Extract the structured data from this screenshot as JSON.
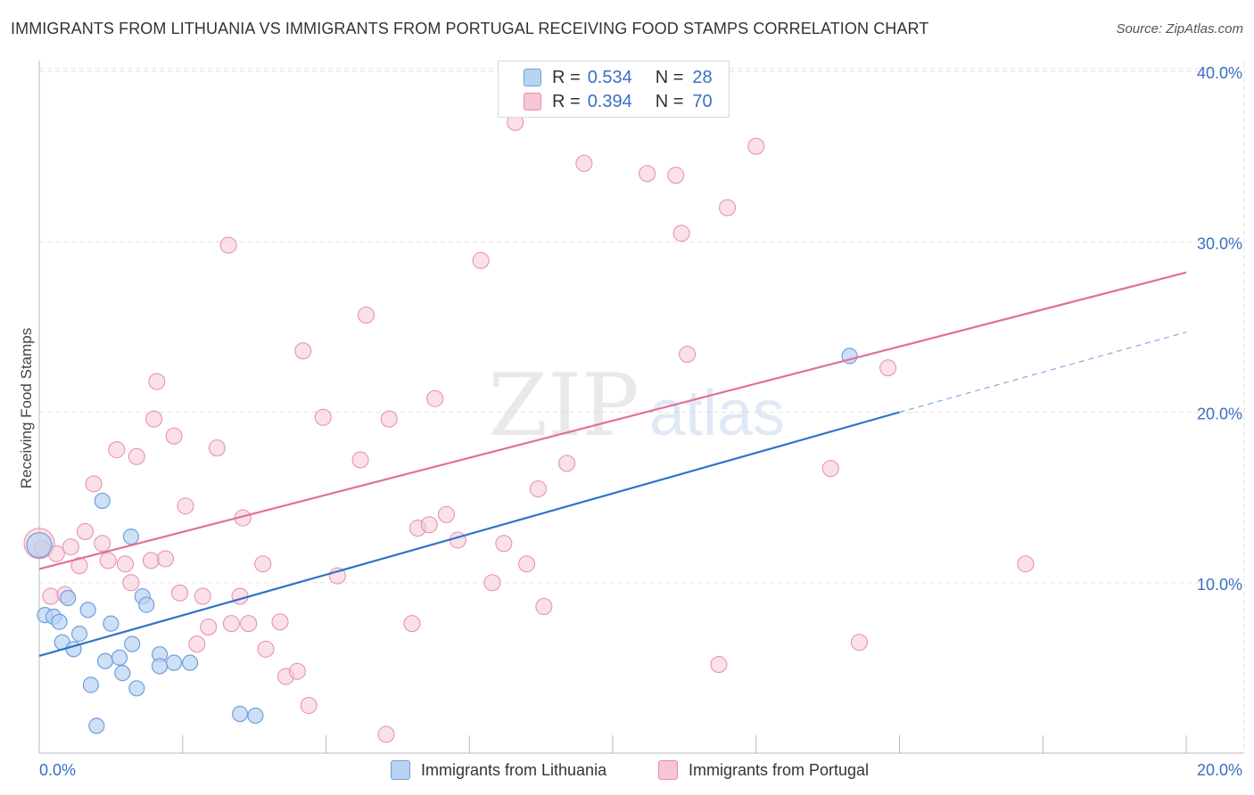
{
  "title": "IMMIGRANTS FROM LITHUANIA VS IMMIGRANTS FROM PORTUGAL RECEIVING FOOD STAMPS CORRELATION CHART",
  "source": "Source: ZipAtlas.com",
  "watermark": {
    "zip": "ZIP",
    "atlas": "atlas"
  },
  "legend": {
    "r_label": "R =",
    "n_label": "N =",
    "series1": {
      "r": "0.534",
      "n": "28"
    },
    "series2": {
      "r": "0.394",
      "n": "70"
    }
  },
  "bottom_legend": {
    "series1": "Immigrants from Lithuania",
    "series2": "Immigrants from Portugal"
  },
  "colors": {
    "blue_fill": "#b9d3f2",
    "blue_stroke": "#6d9fde",
    "blue_line": "#2f73c9",
    "pink_fill": "#f6c6d6",
    "pink_stroke": "#e88aa9",
    "pink_line": "#e0709a",
    "tick_label": "#3a6fc4"
  },
  "chart_data": {
    "type": "scatter",
    "title": "IMMIGRANTS FROM LITHUANIA VS IMMIGRANTS FROM PORTUGAL RECEIVING FOOD STAMPS CORRELATION CHART",
    "xlabel": "",
    "ylabel": "Receiving Food Stamps",
    "xlim": [
      0,
      20
    ],
    "ylim": [
      0,
      40
    ],
    "x_tick_labels": [
      "0.0%",
      "20.0%"
    ],
    "y_ticks": [
      10,
      20,
      30,
      40
    ],
    "y_tick_labels": [
      "10.0%",
      "20.0%",
      "30.0%",
      "40.0%"
    ],
    "grid": true,
    "legend_position": "top-center",
    "series": [
      {
        "name": "Immigrants from Lithuania",
        "r": 0.534,
        "n": 28,
        "trend": {
          "x0": 0,
          "y0": 5.7,
          "x1": 15,
          "y1": 20.0,
          "dashed_to_x": 20,
          "dashed_to_y": 24.7
        },
        "points": [
          [
            0.0,
            12.2
          ],
          [
            0.1,
            8.1
          ],
          [
            0.25,
            8.0
          ],
          [
            0.35,
            7.7
          ],
          [
            0.4,
            6.5
          ],
          [
            0.6,
            6.1
          ],
          [
            0.5,
            9.1
          ],
          [
            0.7,
            7.0
          ],
          [
            0.85,
            8.4
          ],
          [
            0.9,
            4.0
          ],
          [
            1.0,
            1.6
          ],
          [
            1.1,
            14.8
          ],
          [
            1.15,
            5.4
          ],
          [
            1.25,
            7.6
          ],
          [
            1.4,
            5.6
          ],
          [
            1.45,
            4.7
          ],
          [
            1.6,
            12.7
          ],
          [
            1.62,
            6.4
          ],
          [
            1.7,
            3.8
          ],
          [
            1.8,
            9.2
          ],
          [
            1.87,
            8.7
          ],
          [
            2.1,
            5.8
          ],
          [
            2.1,
            5.1
          ],
          [
            2.35,
            5.3
          ],
          [
            2.63,
            5.3
          ],
          [
            3.5,
            2.3
          ],
          [
            3.77,
            2.2
          ],
          [
            14.13,
            23.3
          ]
        ]
      },
      {
        "name": "Immigrants from Portugal",
        "r": 0.394,
        "n": 70,
        "trend": {
          "x0": 0,
          "y0": 10.8,
          "x1": 20,
          "y1": 28.2
        },
        "points": [
          [
            0.0,
            12.3
          ],
          [
            0.2,
            9.2
          ],
          [
            0.3,
            11.7
          ],
          [
            0.45,
            9.3
          ],
          [
            0.55,
            12.1
          ],
          [
            0.7,
            11.0
          ],
          [
            0.8,
            13.0
          ],
          [
            0.95,
            15.8
          ],
          [
            1.1,
            12.3
          ],
          [
            1.2,
            11.3
          ],
          [
            1.35,
            17.8
          ],
          [
            1.5,
            11.1
          ],
          [
            1.6,
            10.0
          ],
          [
            1.7,
            17.4
          ],
          [
            1.95,
            11.3
          ],
          [
            2.0,
            19.6
          ],
          [
            2.05,
            21.8
          ],
          [
            2.2,
            11.4
          ],
          [
            2.35,
            18.6
          ],
          [
            2.45,
            9.4
          ],
          [
            2.55,
            14.5
          ],
          [
            2.75,
            6.4
          ],
          [
            2.85,
            9.2
          ],
          [
            2.95,
            7.4
          ],
          [
            3.1,
            17.9
          ],
          [
            3.3,
            29.8
          ],
          [
            3.35,
            7.6
          ],
          [
            3.5,
            9.2
          ],
          [
            3.55,
            13.8
          ],
          [
            3.65,
            7.6
          ],
          [
            3.9,
            11.1
          ],
          [
            3.95,
            6.1
          ],
          [
            4.2,
            7.7
          ],
          [
            4.3,
            4.5
          ],
          [
            4.5,
            4.8
          ],
          [
            4.6,
            23.6
          ],
          [
            4.7,
            2.8
          ],
          [
            4.95,
            19.7
          ],
          [
            5.2,
            10.4
          ],
          [
            5.6,
            17.2
          ],
          [
            5.7,
            25.7
          ],
          [
            6.05,
            1.1
          ],
          [
            6.1,
            19.6
          ],
          [
            6.5,
            7.6
          ],
          [
            6.6,
            13.2
          ],
          [
            6.8,
            13.4
          ],
          [
            6.9,
            20.8
          ],
          [
            7.1,
            14.0
          ],
          [
            7.3,
            12.5
          ],
          [
            7.7,
            28.9
          ],
          [
            7.9,
            10.0
          ],
          [
            8.1,
            12.3
          ],
          [
            8.3,
            37.0
          ],
          [
            8.5,
            11.1
          ],
          [
            8.7,
            15.5
          ],
          [
            8.8,
            8.6
          ],
          [
            9.2,
            17.0
          ],
          [
            9.5,
            34.6
          ],
          [
            10.6,
            34.0
          ],
          [
            11.1,
            33.9
          ],
          [
            11.2,
            30.5
          ],
          [
            11.3,
            23.4
          ],
          [
            11.85,
            5.2
          ],
          [
            12.0,
            32.0
          ],
          [
            12.5,
            35.6
          ],
          [
            13.8,
            16.7
          ],
          [
            14.3,
            6.5
          ],
          [
            14.8,
            22.6
          ],
          [
            17.2,
            11.1
          ],
          [
            0.05,
            12.0
          ]
        ]
      }
    ]
  }
}
